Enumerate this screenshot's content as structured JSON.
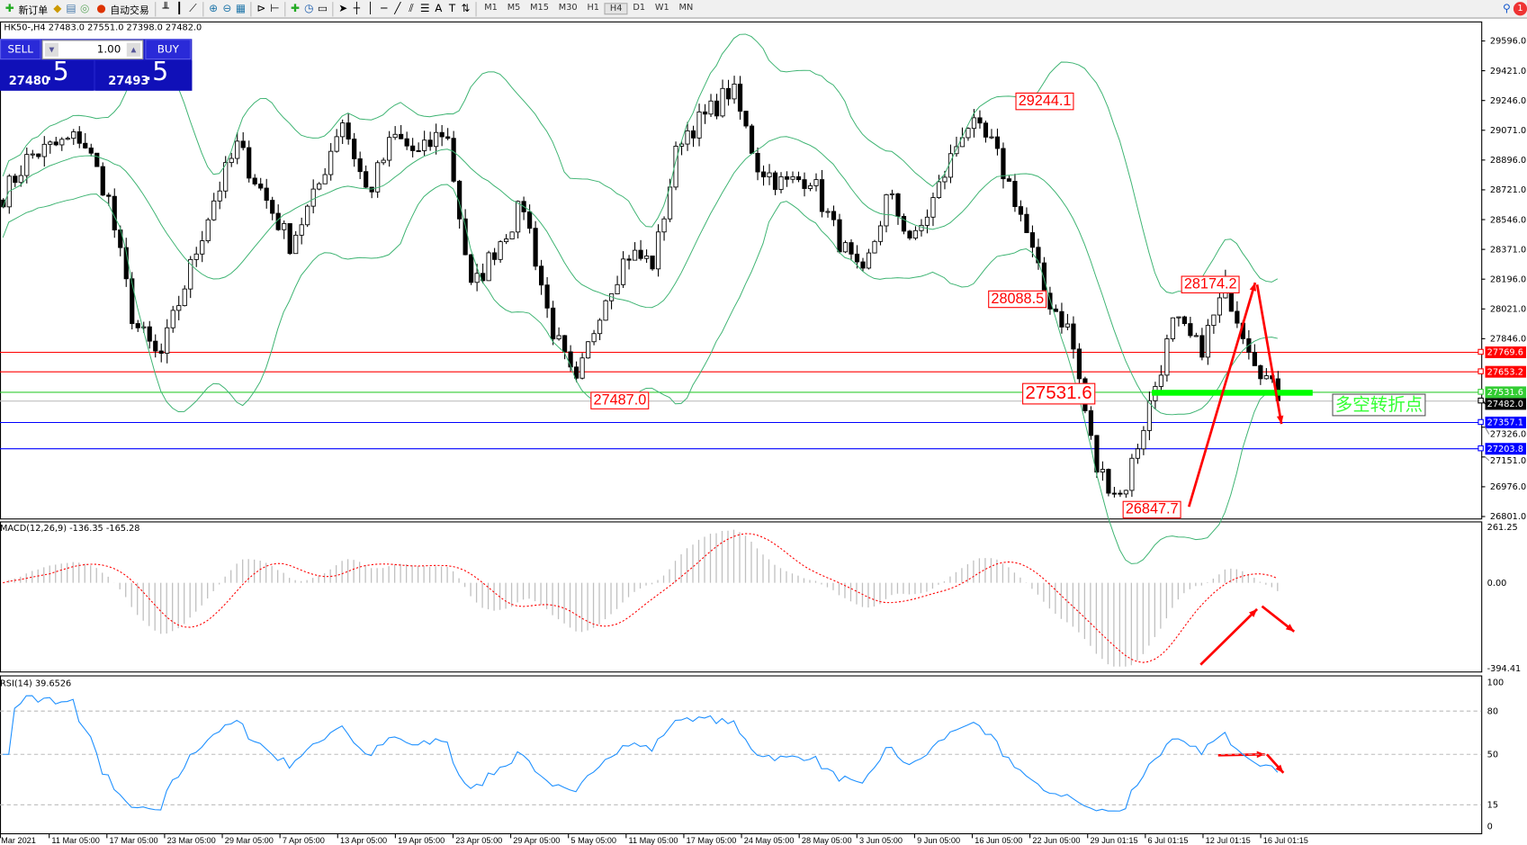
{
  "toolbar": {
    "new_order": "新订单",
    "auto_trading": "自动交易",
    "timeframes": [
      "M1",
      "M5",
      "M15",
      "M30",
      "H1",
      "H4",
      "D1",
      "W1",
      "MN"
    ],
    "active_timeframe": "H4",
    "notification_count": "1"
  },
  "symbol_info": "HK50-,H4  27483.0 27551.0 27398.0 27482.0",
  "trade_panel": {
    "sell_label": "SELL",
    "buy_label": "BUY",
    "lot": "1.00",
    "sell_main": "27480",
    "sell_frac": ".5",
    "buy_main": "27493",
    "buy_frac": ".5",
    "color": "#1c1cc4"
  },
  "price_axis": [
    "29596.0",
    "29421.0",
    "29246.0",
    "29071.0",
    "28896.0",
    "28721.0",
    "28546.0",
    "28371.0",
    "28196.0",
    "28021.0",
    "27846.0",
    "27326.0",
    "27151.0",
    "26976.0",
    "26801.0"
  ],
  "hlines": [
    {
      "price": "27769.6",
      "color": "#ff0000"
    },
    {
      "price": "27653.2",
      "color": "#ff0000"
    },
    {
      "price": "27531.6",
      "color": "#33cc33"
    },
    {
      "price": "27482.0",
      "color": "#000000",
      "line": "#c0c0c0"
    },
    {
      "price": "27357.1",
      "color": "#0000ff"
    },
    {
      "price": "27203.8",
      "color": "#0000ff"
    }
  ],
  "annotations": {
    "a1": "29244.1",
    "a2": "28088.5",
    "a3": "28174.2",
    "a4": "27487.0",
    "a5": "26847.7",
    "a6": "27531.6",
    "turning_point": "多空转折点"
  },
  "macd": {
    "label": "MACD(12,26,9) -136.35 -165.28",
    "axis": [
      "261.25",
      "0.00",
      "-394.41"
    ]
  },
  "rsi": {
    "label": "RSI(14) 39.6526",
    "axis": [
      "100",
      "80",
      "50",
      "15",
      "0"
    ]
  },
  "time_axis": [
    "Mar 2021",
    "11 Mar 05:00",
    "17 Mar 05:00",
    "23 Mar 05:00",
    "29 Mar 05:00",
    "7 Apr 05:00",
    "13 Apr 05:00",
    "19 Apr 05:00",
    "23 Apr 05:00",
    "29 Apr 05:00",
    "5 May 05:00",
    "11 May 05:00",
    "17 May 05:00",
    "24 May 05:00",
    "28 May 05:00",
    "3 Jun 05:00",
    "9 Jun 05:00",
    "16 Jun 05:00",
    "22 Jun 05:00",
    "29 Jun 01:15",
    "6 Jul 01:15",
    "12 Jul 01:15",
    "16 Jul 01:15"
  ],
  "colors": {
    "bands": "#3cb371",
    "macd_signal": "#ff0000",
    "macd_hist": "#c0c0c0",
    "rsi": "#1e90ff",
    "arrows": "#ff0000",
    "turning_bar": "#00ff00"
  },
  "chart_data": {
    "type": "candlestick",
    "approx_close_path": [
      28691,
      28920,
      28978,
      29035,
      28691,
      27947,
      27718,
      28176,
      28634,
      28978,
      28691,
      28405,
      28691,
      29150,
      28691,
      29035,
      28920,
      29092,
      28118,
      28405,
      28634,
      27947,
      27546,
      28061,
      28348,
      28290,
      29035,
      29150,
      29321,
      28863,
      28748,
      28806,
      28462,
      28176,
      28691,
      28405,
      28748,
      29121,
      28978,
      28634,
      28118,
      27889,
      27087,
      26916,
      27431,
      27947,
      27775,
      28147,
      27775,
      27482
    ],
    "ylim": [
      26801,
      29596
    ],
    "indicators": [
      "Bollinger Bands",
      "MACD(12,26,9)",
      "RSI(14)"
    ]
  }
}
